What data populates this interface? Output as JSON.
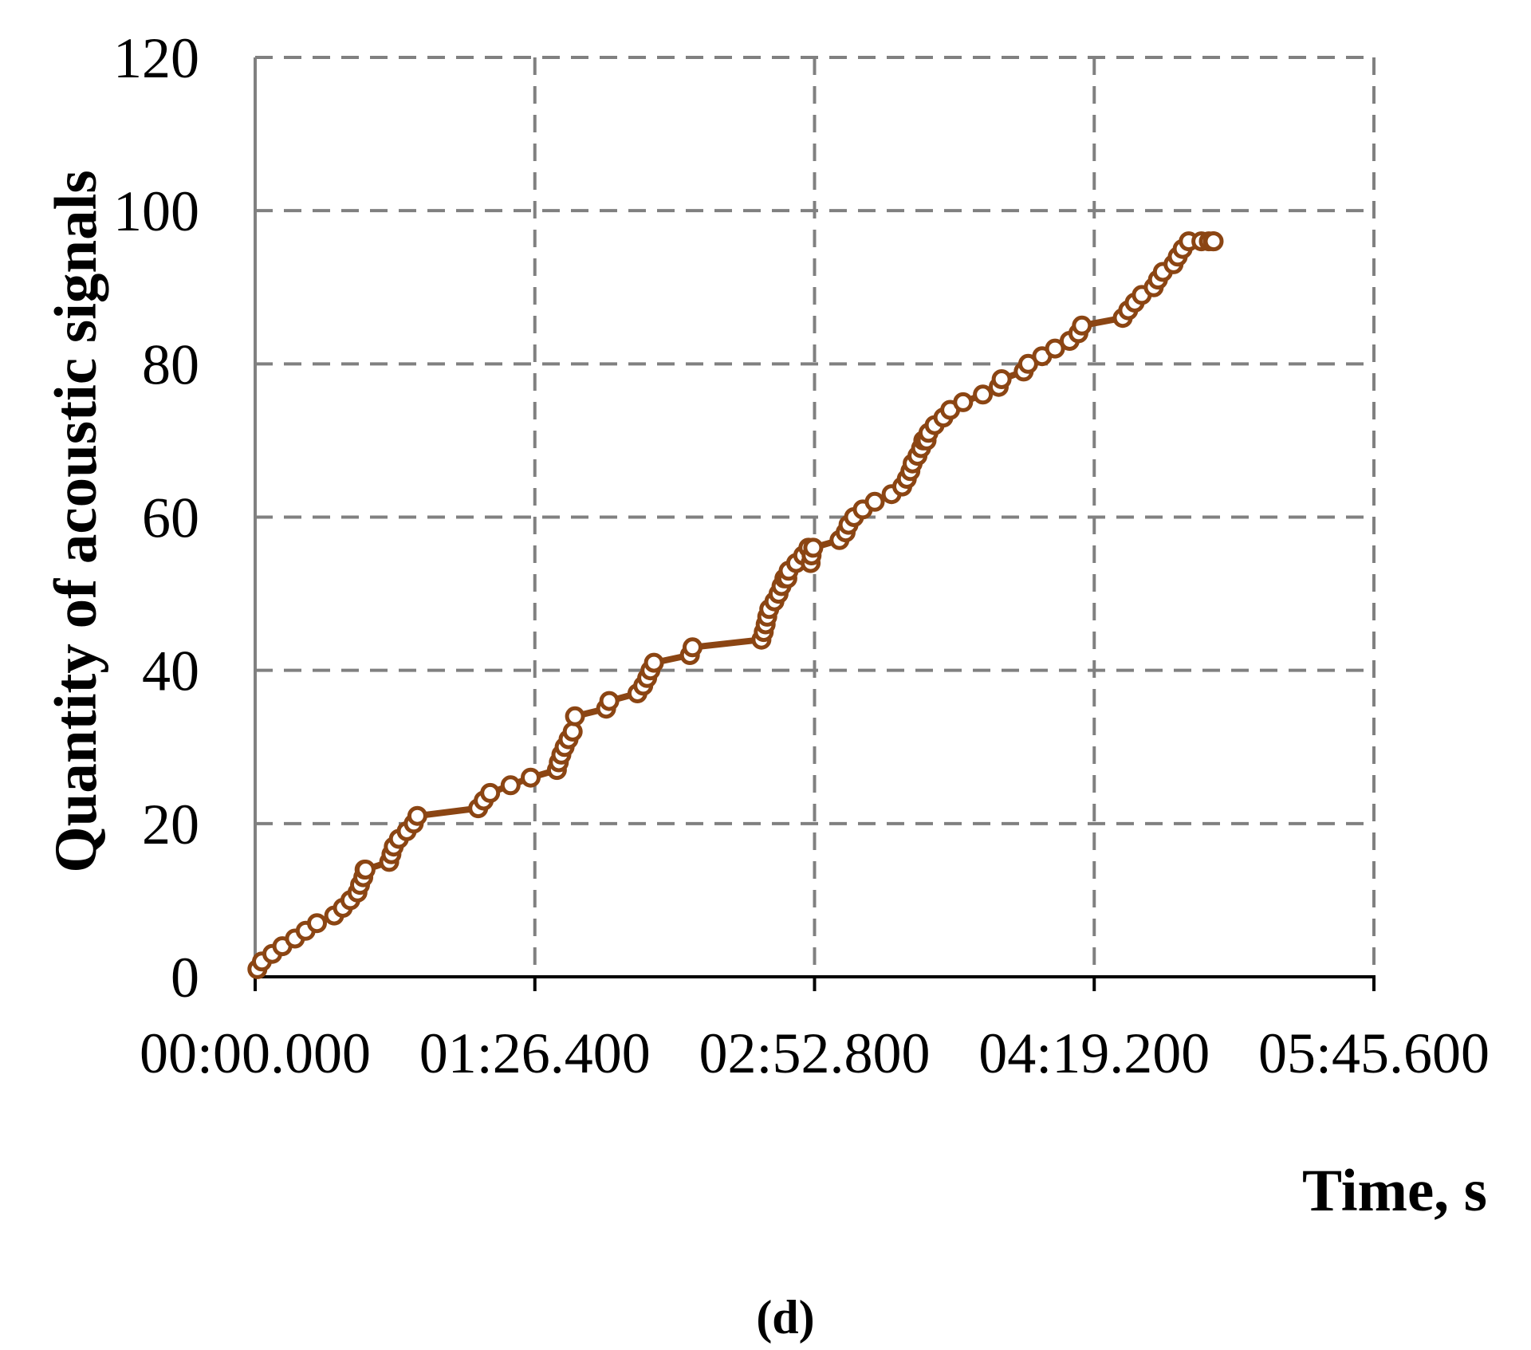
{
  "chart_data": {
    "type": "line",
    "title": "",
    "xlabel": "Time, s",
    "ylabel": "Quantity of acoustic signals",
    "panel_label": "(d)",
    "xlim": [
      0,
      345.6
    ],
    "ylim": [
      0,
      120
    ],
    "x_ticks": [
      0,
      86.4,
      172.8,
      259.2,
      345.6
    ],
    "x_tick_labels": [
      "00:00.000",
      "01:26.400",
      "02:52.800",
      "04:19.200",
      "05:45.600"
    ],
    "y_ticks": [
      0,
      20,
      40,
      60,
      80,
      100,
      120
    ],
    "y_tick_labels": [
      "0",
      "20",
      "40",
      "60",
      "80",
      "100",
      "120"
    ],
    "grid": true,
    "grid_style": "dashed",
    "marker": "open-circle",
    "colors": {
      "series": "#8B4513",
      "marker_fill": "#ffffff",
      "grid": "#808080",
      "axis": "#808080"
    },
    "series": [
      {
        "x": [
          0.7,
          2.1,
          5.3,
          8.4,
          12.3,
          15.6,
          19.1,
          24.4,
          27.1,
          29.4,
          31.6,
          32.4,
          33.4,
          33.8,
          34.1,
          41.4,
          42.1,
          42.8,
          44.4,
          46.8,
          49.0,
          50.1,
          68.9,
          70.6,
          72.6,
          78.9,
          85.1,
          93.2,
          93.8,
          94.6,
          95.6,
          96.8,
          98.1,
          98.8,
          108.4,
          109.4,
          118.1,
          119.9,
          121.1,
          122.1,
          123.2,
          134.3,
          135.1,
          156.4,
          157.1,
          157.7,
          158.2,
          158.8,
          160.4,
          161.7,
          162.6,
          163.5,
          164.4,
          164.8,
          167.1,
          169.3,
          170.9,
          171.6,
          171.9,
          172.4,
          180.5,
          182.4,
          183.3,
          185.0,
          187.7,
          191.4,
          196.6,
          199.9,
          201.3,
          202.4,
          203.1,
          204.6,
          205.7,
          206.4,
          207.4,
          208.0,
          209.9,
          212.6,
          214.7,
          218.7,
          224.8,
          229.7,
          230.6,
          237.4,
          238.8,
          243.1,
          247.1,
          251.6,
          254.3,
          255.4,
          268.0,
          269.7,
          271.7,
          273.9,
          277.6,
          278.9,
          280.4,
          283.7,
          285.0,
          286.5,
          288.4,
          292.3,
          294.6,
          295.9,
          296.1
        ],
        "y": [
          1,
          2,
          3,
          4,
          5,
          6,
          7,
          8,
          9,
          10,
          11,
          12,
          13,
          14,
          14,
          15,
          16,
          17,
          18,
          19,
          20,
          21,
          22,
          23,
          24,
          25,
          26,
          27,
          28,
          29,
          30,
          31,
          32,
          34,
          35,
          36,
          37,
          38,
          39,
          40,
          41,
          42,
          43,
          44,
          45,
          46,
          47,
          48,
          49,
          50,
          51,
          52,
          52,
          53,
          54,
          55,
          56,
          54,
          55,
          56,
          57,
          58,
          59,
          60,
          61,
          62,
          63,
          64,
          65,
          66,
          67,
          68,
          69,
          70,
          70,
          71,
          72,
          73,
          74,
          75,
          76,
          77,
          78,
          79,
          80,
          81,
          82,
          83,
          84,
          85,
          86,
          87,
          88,
          89,
          90,
          91,
          92,
          93,
          94,
          95,
          96,
          96,
          96,
          96,
          96
        ]
      }
    ]
  }
}
